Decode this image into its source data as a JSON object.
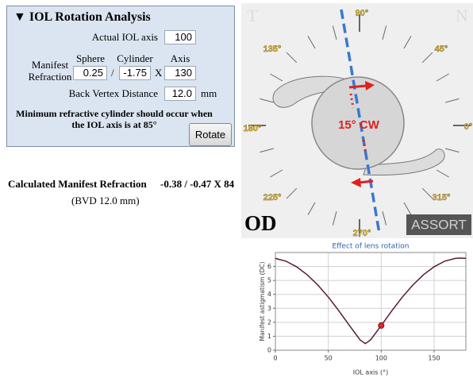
{
  "panel": {
    "title": "▼ IOL Rotation Analysis",
    "actual_iol_axis_label": "Actual IOL axis",
    "actual_iol_axis": "100",
    "manifest_label": "Manifest Refraction",
    "headers": [
      "Sphere",
      "Cylinder",
      "Axis"
    ],
    "sphere": "0.25",
    "slash": "/",
    "cylinder": "-1.75",
    "x_sep": "X",
    "axis": "130",
    "bvd_label": "Back Vertex Distance",
    "bvd": "12.0",
    "bvd_unit": "mm",
    "note": "Minimum refractive cylinder should occur when the IOL axis is at 85°",
    "button": "Rotate"
  },
  "result": {
    "label": "Calculated Manifest Refraction",
    "value": "-0.38 / -0.47 X 84",
    "bvd": "(BVD 12.0 mm)"
  },
  "diagram": {
    "angle_labels": [
      "90°",
      "45°",
      "0°",
      "315°",
      "270°",
      "225°",
      "180°",
      "135°"
    ],
    "rotation": "15° CW",
    "eye": "OD",
    "logo": "ASSORT",
    "corner_left": "T",
    "corner_right": "N"
  },
  "chart_data": {
    "type": "line",
    "title": "Effect of lens rotation",
    "x_label": "IOL axis (°)",
    "y_label": "Manifest astigmatism (DC)",
    "x": [
      0,
      10,
      20,
      30,
      40,
      50,
      60,
      70,
      80,
      85,
      90,
      100,
      110,
      120,
      130,
      140,
      150,
      160,
      170,
      175,
      180
    ],
    "series": [
      {
        "color": "#5a1838",
        "values": [
          6.58,
          6.38,
          5.98,
          5.41,
          4.68,
          3.81,
          2.82,
          1.77,
          0.74,
          0.47,
          0.74,
          1.77,
          2.82,
          3.81,
          4.68,
          5.41,
          5.98,
          6.38,
          6.58,
          6.6,
          6.58
        ]
      }
    ],
    "highlight": {
      "x": 100,
      "y": 1.77,
      "color": "#e02828"
    },
    "xlim": [
      0,
      180
    ],
    "ylim": [
      0,
      7
    ],
    "xticks": [
      0,
      50,
      100,
      150
    ],
    "yticks": [
      0,
      1,
      2,
      3,
      4,
      5,
      6
    ],
    "grid": true
  }
}
